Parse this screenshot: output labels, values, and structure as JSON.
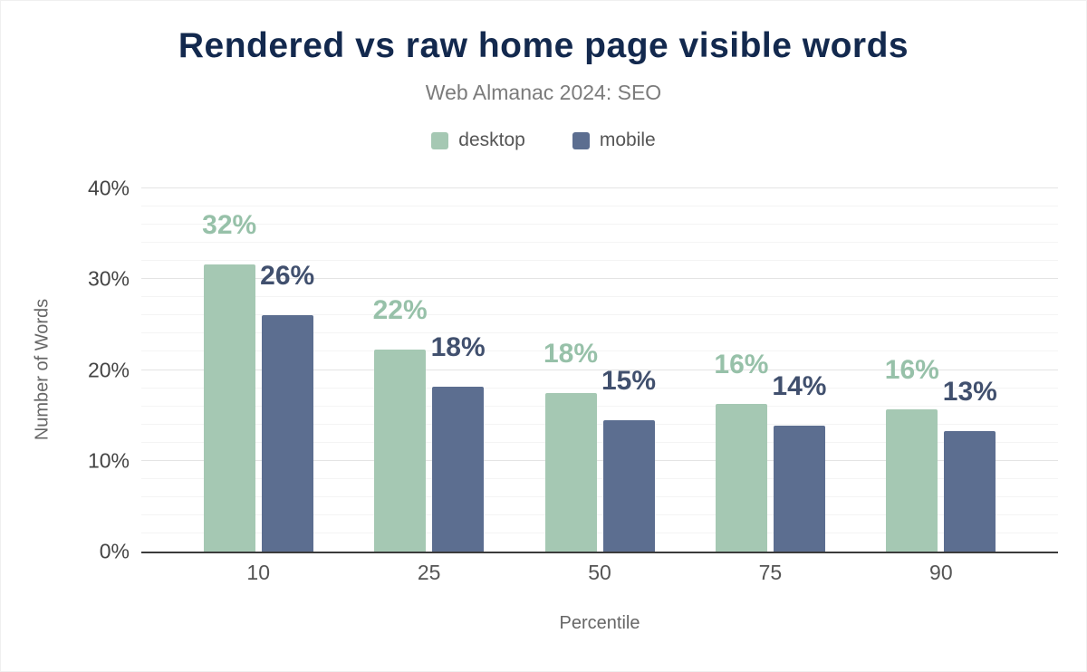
{
  "title": "Rendered vs raw home page visible words",
  "subtitle": "Web Almanac 2024: SEO",
  "chart_data": {
    "type": "bar",
    "title": "Rendered vs raw home page visible words",
    "subtitle": "Web Almanac 2024: SEO",
    "categories": [
      "10",
      "25",
      "50",
      "75",
      "90"
    ],
    "series": [
      {
        "name": "desktop",
        "color": "#a5c8b3",
        "label_color": "#97c1a9",
        "values": [
          31.6,
          22.2,
          17.5,
          16.3,
          15.7
        ],
        "labels": [
          "32%",
          "22%",
          "18%",
          "16%",
          "16%"
        ]
      },
      {
        "name": "mobile",
        "color": "#5c6e90",
        "label_color": "#41506e",
        "values": [
          26.0,
          18.2,
          14.5,
          13.9,
          13.3
        ],
        "labels": [
          "26%",
          "18%",
          "15%",
          "14%",
          "13%"
        ]
      }
    ],
    "xlabel": "Percentile",
    "ylabel": "Number of Words",
    "ylim": [
      0,
      40
    ],
    "yticks": [
      {
        "label": "0%",
        "value": 0
      },
      {
        "label": "10%",
        "value": 10
      },
      {
        "label": "20%",
        "value": 20
      },
      {
        "label": "30%",
        "value": 30
      },
      {
        "label": "40%",
        "value": 40
      }
    ],
    "grid": true,
    "legend_position": "top"
  }
}
